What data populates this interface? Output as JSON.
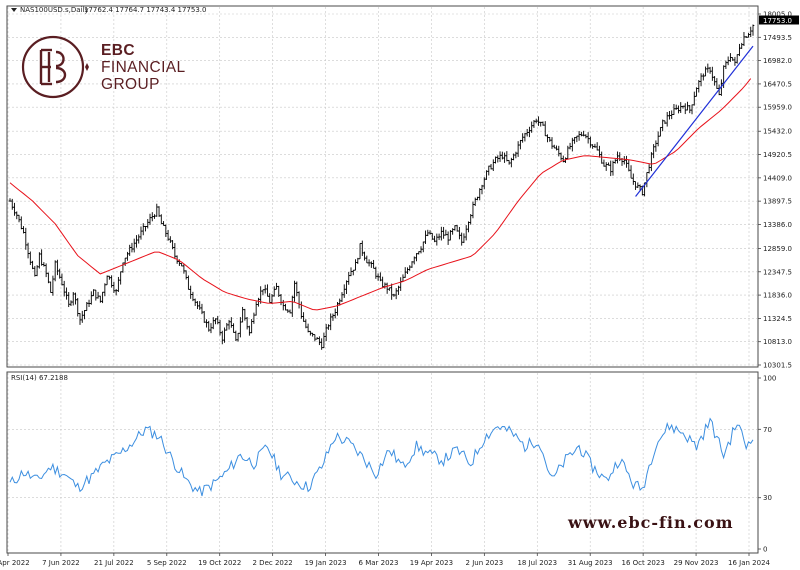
{
  "header": {
    "symbol_label": "NAS100USD.s,Daily",
    "ohlc": "17762.4 17764.7 17743.4 17753.0"
  },
  "logo": {
    "line1": "EBC",
    "line2": "FINANCIAL",
    "line3": "GROUP"
  },
  "watermark": "www.ebc-fin.com",
  "rsi_label": "RSI(14) 67.2188",
  "last_price_label": "17753.0",
  "colors": {
    "candles": "#000000",
    "moving_average": "#e8121b",
    "trendline": "#2030d8",
    "rsi": "#3d8fe0",
    "grid": "#c8c8c8",
    "brand": "#5a1e22",
    "last_price_bg": "#000000"
  },
  "chart_data": [
    {
      "type": "candlestick",
      "title": "NAS100USD.s,Daily",
      "y_ticks": [
        18005.0,
        17493.5,
        16982.0,
        16470.5,
        15959.0,
        15432.0,
        14920.5,
        14409.0,
        13897.5,
        13386.0,
        12859.0,
        12347.5,
        11836.0,
        11324.5,
        10813.0,
        10301.5
      ],
      "y_tick_labels": [
        "18005.0",
        "17493.5",
        "16982.0",
        "16470.5",
        "15959.0",
        "15432.0",
        "14920.5",
        "14409.0",
        "13897.5",
        "13386.0",
        "12859.0",
        "12347.5",
        "11836.0",
        "11324.5",
        "10813.0",
        "10301.5"
      ],
      "ylim": [
        10301.5,
        18005.0
      ],
      "x_tick_labels": [
        "22 Apr 2022",
        "7 Jun 2022",
        "21 Jul 2022",
        "5 Sep 2022",
        "19 Oct 2022",
        "2 Dec 2022",
        "19 Jan 2023",
        "6 Mar 2023",
        "19 Apr 2023",
        "2 Jun 2023",
        "18 Jul 2023",
        "31 Aug 2023",
        "16 Oct 2023",
        "29 Nov 2023",
        "16 Jan 2024"
      ],
      "price_path": [
        [
          0,
          13900
        ],
        [
          3,
          13600
        ],
        [
          6,
          13200
        ],
        [
          9,
          12600
        ],
        [
          11,
          12200
        ],
        [
          13,
          12700
        ],
        [
          16,
          12300
        ],
        [
          18,
          11900
        ],
        [
          20,
          12500
        ],
        [
          23,
          12100
        ],
        [
          26,
          11600
        ],
        [
          28,
          11900
        ],
        [
          31,
          11300
        ],
        [
          34,
          11600
        ],
        [
          37,
          11900
        ],
        [
          40,
          11700
        ],
        [
          43,
          12300
        ],
        [
          47,
          11900
        ],
        [
          50,
          12600
        ],
        [
          54,
          12900
        ],
        [
          58,
          13200
        ],
        [
          62,
          13500
        ],
        [
          65,
          13700
        ],
        [
          67,
          13400
        ],
        [
          70,
          13100
        ],
        [
          73,
          12700
        ],
        [
          76,
          12500
        ],
        [
          79,
          12000
        ],
        [
          82,
          11700
        ],
        [
          85,
          11400
        ],
        [
          88,
          11100
        ],
        [
          91,
          11300
        ],
        [
          94,
          10900
        ],
        [
          97,
          11300
        ],
        [
          100,
          10800
        ],
        [
          103,
          11500
        ],
        [
          106,
          11000
        ],
        [
          109,
          11700
        ],
        [
          112,
          12000
        ],
        [
          115,
          11700
        ],
        [
          118,
          12000
        ],
        [
          121,
          11600
        ],
        [
          124,
          11500
        ],
        [
          126,
          12100
        ],
        [
          129,
          11400
        ],
        [
          132,
          11000
        ],
        [
          135,
          10900
        ],
        [
          138,
          10750
        ],
        [
          141,
          11200
        ],
        [
          144,
          11500
        ],
        [
          147,
          11900
        ],
        [
          150,
          12300
        ],
        [
          153,
          12500
        ],
        [
          155,
          12900
        ],
        [
          158,
          12600
        ],
        [
          161,
          12400
        ],
        [
          164,
          12100
        ],
        [
          167,
          12000
        ],
        [
          170,
          11800
        ],
        [
          173,
          12100
        ],
        [
          176,
          12400
        ],
        [
          179,
          12700
        ],
        [
          182,
          12900
        ],
        [
          185,
          13200
        ],
        [
          188,
          13000
        ],
        [
          191,
          13200
        ],
        [
          194,
          13100
        ],
        [
          197,
          13300
        ],
        [
          200,
          13000
        ],
        [
          203,
          13500
        ],
        [
          206,
          13900
        ],
        [
          209,
          14300
        ],
        [
          212,
          14600
        ],
        [
          215,
          14800
        ],
        [
          218,
          14900
        ],
        [
          221,
          14700
        ],
        [
          224,
          15000
        ],
        [
          227,
          15300
        ],
        [
          230,
          15500
        ],
        [
          233,
          15700
        ],
        [
          236,
          15500
        ],
        [
          239,
          15200
        ],
        [
          242,
          15000
        ],
        [
          245,
          14800
        ],
        [
          248,
          15100
        ],
        [
          251,
          15300
        ],
        [
          254,
          15400
        ],
        [
          257,
          15200
        ],
        [
          260,
          15000
        ],
        [
          263,
          14700
        ],
        [
          266,
          14600
        ],
        [
          269,
          14900
        ],
        [
          272,
          14800
        ],
        [
          275,
          14400
        ],
        [
          278,
          14200
        ],
        [
          280,
          14100
        ],
        [
          283,
          14700
        ],
        [
          286,
          15200
        ],
        [
          289,
          15600
        ],
        [
          292,
          15800
        ],
        [
          295,
          15900
        ],
        [
          298,
          16000
        ],
        [
          301,
          15900
        ],
        [
          304,
          16400
        ],
        [
          307,
          16700
        ],
        [
          310,
          16800
        ],
        [
          312,
          16500
        ],
        [
          314,
          16200
        ],
        [
          316,
          16800
        ],
        [
          319,
          17100
        ],
        [
          321,
          16900
        ],
        [
          323,
          17300
        ],
        [
          325,
          17500
        ],
        [
          327,
          17600
        ],
        [
          329,
          17750
        ]
      ],
      "series": [
        {
          "name": "",
          "kind": "moving_average",
          "values": [
            [
              0,
              14300
            ],
            [
              10,
              13900
            ],
            [
              20,
              13400
            ],
            [
              30,
              12700
            ],
            [
              40,
              12300
            ],
            [
              50,
              12500
            ],
            [
              60,
              12700
            ],
            [
              65,
              12800
            ],
            [
              75,
              12600
            ],
            [
              85,
              12200
            ],
            [
              95,
              11900
            ],
            [
              105,
              11750
            ],
            [
              115,
              11650
            ],
            [
              125,
              11700
            ],
            [
              135,
              11500
            ],
            [
              145,
              11600
            ],
            [
              155,
              11800
            ],
            [
              165,
              12000
            ],
            [
              175,
              12150
            ],
            [
              185,
              12400
            ],
            [
              195,
              12550
            ],
            [
              205,
              12700
            ],
            [
              215,
              13200
            ],
            [
              225,
              13900
            ],
            [
              235,
              14500
            ],
            [
              245,
              14800
            ],
            [
              255,
              14900
            ],
            [
              265,
              14850
            ],
            [
              275,
              14800
            ],
            [
              285,
              14700
            ],
            [
              295,
              15000
            ],
            [
              305,
              15500
            ],
            [
              315,
              15900
            ],
            [
              325,
              16400
            ],
            [
              329,
              16650
            ]
          ]
        },
        {
          "name": "",
          "kind": "trendline",
          "values": [
            [
              277,
              14000
            ],
            [
              329,
              17300
            ]
          ]
        }
      ]
    },
    {
      "type": "line",
      "title": "RSI(14) 67.2188",
      "y_ticks": [
        0,
        30,
        70,
        100
      ],
      "y_tick_labels": [
        "0",
        "30",
        "70",
        "100"
      ],
      "ylim": [
        0,
        100
      ],
      "values": [
        [
          0,
          38
        ],
        [
          6,
          45
        ],
        [
          12,
          40
        ],
        [
          18,
          48
        ],
        [
          24,
          44
        ],
        [
          30,
          36
        ],
        [
          36,
          42
        ],
        [
          42,
          50
        ],
        [
          48,
          55
        ],
        [
          54,
          62
        ],
        [
          60,
          70
        ],
        [
          66,
          66
        ],
        [
          72,
          52
        ],
        [
          78,
          40
        ],
        [
          84,
          33
        ],
        [
          90,
          38
        ],
        [
          96,
          45
        ],
        [
          102,
          55
        ],
        [
          108,
          50
        ],
        [
          114,
          60
        ],
        [
          120,
          44
        ],
        [
          126,
          40
        ],
        [
          132,
          36
        ],
        [
          138,
          48
        ],
        [
          144,
          66
        ],
        [
          150,
          62
        ],
        [
          156,
          54
        ],
        [
          162,
          44
        ],
        [
          168,
          58
        ],
        [
          174,
          48
        ],
        [
          180,
          60
        ],
        [
          186,
          55
        ],
        [
          192,
          52
        ],
        [
          198,
          58
        ],
        [
          204,
          50
        ],
        [
          210,
          65
        ],
        [
          216,
          72
        ],
        [
          222,
          68
        ],
        [
          228,
          60
        ],
        [
          234,
          64
        ],
        [
          240,
          40
        ],
        [
          246,
          52
        ],
        [
          252,
          60
        ],
        [
          258,
          48
        ],
        [
          264,
          40
        ],
        [
          270,
          53
        ],
        [
          276,
          38
        ],
        [
          280,
          35
        ],
        [
          286,
          62
        ],
        [
          292,
          72
        ],
        [
          298,
          68
        ],
        [
          304,
          60
        ],
        [
          310,
          75
        ],
        [
          316,
          55
        ],
        [
          322,
          74
        ],
        [
          326,
          60
        ],
        [
          329,
          67.2
        ]
      ]
    }
  ]
}
